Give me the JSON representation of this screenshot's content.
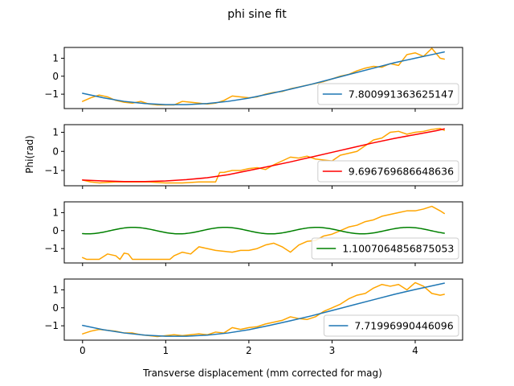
{
  "figure": {
    "suptitle": "phi sine fit",
    "xlabel": "Transverse displacement (mm corrected for mag)",
    "ylabel": "Phi(rad)"
  },
  "colors": {
    "data": "#ffa500",
    "fit_blue": "#1f77b4",
    "fit_red": "#ff0000",
    "fit_green": "#008000"
  },
  "chart_data": [
    {
      "type": "line",
      "panel": 1,
      "xlim": [
        -0.22,
        4.57
      ],
      "ylim": [
        -1.8,
        1.6
      ],
      "xticks": [
        0,
        1,
        2,
        3,
        4
      ],
      "yticks": [
        -1,
        0,
        1
      ],
      "legend": "lower-right",
      "fit_model": "sine",
      "series": [
        {
          "name": "",
          "role": "data",
          "color": "#ffa500",
          "x": [
            0.0,
            0.1,
            0.2,
            0.3,
            0.4,
            0.5,
            0.6,
            0.7,
            0.8,
            0.9,
            1.0,
            1.1,
            1.2,
            1.3,
            1.4,
            1.5,
            1.6,
            1.7,
            1.8,
            1.9,
            2.0,
            2.1,
            2.2,
            2.3,
            2.4,
            2.5,
            2.6,
            2.7,
            2.8,
            2.9,
            3.0,
            3.1,
            3.2,
            3.3,
            3.4,
            3.5,
            3.6,
            3.7,
            3.8,
            3.9,
            4.0,
            4.1,
            4.2,
            4.3,
            4.35
          ],
          "y": [
            -1.4,
            -1.2,
            -1.05,
            -1.15,
            -1.35,
            -1.45,
            -1.5,
            -1.4,
            -1.55,
            -1.6,
            -1.6,
            -1.6,
            -1.4,
            -1.45,
            -1.5,
            -1.55,
            -1.5,
            -1.35,
            -1.1,
            -1.15,
            -1.2,
            -1.15,
            -1.0,
            -0.9,
            -0.85,
            -0.7,
            -0.6,
            -0.5,
            -0.4,
            -0.3,
            -0.15,
            0.0,
            0.1,
            0.3,
            0.45,
            0.55,
            0.5,
            0.7,
            0.6,
            1.2,
            1.3,
            1.1,
            1.55,
            1.0,
            0.95
          ]
        },
        {
          "name": "7.800991363625147",
          "role": "fit",
          "color": "#1f77b4",
          "x": [
            0.0,
            0.25,
            0.5,
            0.75,
            1.0,
            1.25,
            1.5,
            1.75,
            2.0,
            2.25,
            2.5,
            2.75,
            3.0,
            3.25,
            3.5,
            3.75,
            4.0,
            4.25,
            4.35
          ],
          "y": [
            -0.95,
            -1.2,
            -1.4,
            -1.52,
            -1.58,
            -1.58,
            -1.52,
            -1.4,
            -1.22,
            -0.98,
            -0.72,
            -0.45,
            -0.15,
            0.15,
            0.45,
            0.75,
            1.0,
            1.25,
            1.35
          ]
        }
      ]
    },
    {
      "type": "line",
      "panel": 2,
      "xlim": [
        -0.22,
        4.57
      ],
      "ylim": [
        -1.8,
        1.4
      ],
      "xticks": [
        0,
        1,
        2,
        3,
        4
      ],
      "yticks": [
        -1,
        0,
        1
      ],
      "legend": "lower-right",
      "fit_model": "sine",
      "series": [
        {
          "name": "",
          "role": "data",
          "color": "#ffa500",
          "x": [
            0.0,
            0.1,
            0.2,
            0.4,
            0.6,
            0.8,
            1.0,
            1.2,
            1.4,
            1.6,
            1.65,
            1.7,
            1.8,
            1.9,
            2.0,
            2.1,
            2.2,
            2.3,
            2.4,
            2.5,
            2.6,
            2.7,
            2.8,
            2.9,
            3.0,
            3.1,
            3.2,
            3.3,
            3.4,
            3.5,
            3.6,
            3.7,
            3.8,
            3.9,
            4.0,
            4.1,
            4.2,
            4.3,
            4.35
          ],
          "y": [
            -1.5,
            -1.6,
            -1.65,
            -1.6,
            -1.6,
            -1.6,
            -1.65,
            -1.65,
            -1.6,
            -1.6,
            -1.1,
            -1.1,
            -1.0,
            -1.0,
            -0.9,
            -0.85,
            -0.95,
            -0.7,
            -0.5,
            -0.3,
            -0.35,
            -0.25,
            -0.4,
            -0.45,
            -0.5,
            -0.2,
            -0.1,
            0.0,
            0.3,
            0.6,
            0.7,
            1.0,
            1.05,
            0.9,
            1.0,
            1.05,
            1.15,
            1.2,
            1.1
          ]
        },
        {
          "name": "9.696769686648636",
          "role": "fit",
          "color": "#ff0000",
          "x": [
            0.0,
            0.25,
            0.5,
            0.75,
            1.0,
            1.25,
            1.5,
            1.75,
            2.0,
            2.25,
            2.5,
            2.75,
            3.0,
            3.25,
            3.5,
            3.75,
            4.0,
            4.25,
            4.35
          ],
          "y": [
            -1.5,
            -1.55,
            -1.58,
            -1.58,
            -1.55,
            -1.48,
            -1.38,
            -1.22,
            -1.0,
            -0.78,
            -0.55,
            -0.3,
            -0.05,
            0.2,
            0.45,
            0.68,
            0.88,
            1.08,
            1.18
          ]
        }
      ]
    },
    {
      "type": "line",
      "panel": 3,
      "xlim": [
        -0.22,
        4.57
      ],
      "ylim": [
        -1.8,
        1.6
      ],
      "xticks": [
        0,
        1,
        2,
        3,
        4
      ],
      "yticks": [
        -1,
        0,
        1
      ],
      "legend": "lower-right",
      "fit_model": "sine",
      "series": [
        {
          "name": "",
          "role": "data",
          "color": "#ffa500",
          "x": [
            0.0,
            0.05,
            0.1,
            0.2,
            0.3,
            0.4,
            0.45,
            0.5,
            0.55,
            0.6,
            0.65,
            0.7,
            0.8,
            0.9,
            1.0,
            1.05,
            1.1,
            1.2,
            1.3,
            1.4,
            1.5,
            1.6,
            1.7,
            1.8,
            1.9,
            2.0,
            2.1,
            2.2,
            2.3,
            2.4,
            2.5,
            2.6,
            2.7,
            2.8,
            2.9,
            3.0,
            3.1,
            3.2,
            3.3,
            3.4,
            3.5,
            3.6,
            3.7,
            3.8,
            3.9,
            4.0,
            4.1,
            4.2,
            4.3,
            4.35
          ],
          "y": [
            -1.5,
            -1.6,
            -1.6,
            -1.6,
            -1.3,
            -1.4,
            -1.6,
            -1.25,
            -1.3,
            -1.6,
            -1.6,
            -1.6,
            -1.6,
            -1.6,
            -1.6,
            -1.6,
            -1.4,
            -1.2,
            -1.3,
            -0.9,
            -1.0,
            -1.1,
            -1.15,
            -1.2,
            -1.1,
            -1.1,
            -1.0,
            -0.8,
            -0.7,
            -0.9,
            -1.2,
            -0.8,
            -0.6,
            -0.55,
            -0.3,
            -0.2,
            0.0,
            0.2,
            0.3,
            0.5,
            0.6,
            0.8,
            0.9,
            1.0,
            1.1,
            1.1,
            1.2,
            1.35,
            1.1,
            0.95
          ]
        },
        {
          "name": "1.1007064856875053",
          "role": "fit",
          "color": "#008000",
          "amplitude": 0.18,
          "offset": 0.0,
          "period": 1.1007064856875053,
          "phase_deg": 250,
          "x_range": [
            0.0,
            4.35
          ]
        }
      ]
    },
    {
      "type": "line",
      "panel": 4,
      "xlim": [
        -0.22,
        4.57
      ],
      "ylim": [
        -1.8,
        1.6
      ],
      "xticks": [
        0,
        1,
        2,
        3,
        4
      ],
      "yticks": [
        -1,
        0,
        1
      ],
      "legend": "lower-right",
      "fit_model": "sine",
      "series": [
        {
          "name": "",
          "role": "data",
          "color": "#ffa500",
          "x": [
            0.0,
            0.1,
            0.2,
            0.3,
            0.4,
            0.5,
            0.6,
            0.7,
            0.8,
            0.9,
            1.0,
            1.1,
            1.2,
            1.3,
            1.4,
            1.5,
            1.6,
            1.7,
            1.8,
            1.9,
            2.0,
            2.1,
            2.2,
            2.3,
            2.4,
            2.5,
            2.6,
            2.7,
            2.8,
            2.9,
            3.0,
            3.1,
            3.2,
            3.3,
            3.4,
            3.5,
            3.6,
            3.7,
            3.8,
            3.9,
            4.0,
            4.1,
            4.2,
            4.3,
            4.35
          ],
          "y": [
            -1.45,
            -1.3,
            -1.2,
            -1.25,
            -1.3,
            -1.4,
            -1.4,
            -1.5,
            -1.55,
            -1.6,
            -1.55,
            -1.5,
            -1.55,
            -1.5,
            -1.45,
            -1.5,
            -1.35,
            -1.4,
            -1.1,
            -1.2,
            -1.1,
            -1.05,
            -0.9,
            -0.8,
            -0.7,
            -0.5,
            -0.6,
            -0.65,
            -0.5,
            -0.2,
            0.0,
            0.2,
            0.5,
            0.7,
            0.8,
            1.1,
            1.3,
            1.2,
            1.3,
            1.0,
            1.4,
            1.2,
            0.8,
            0.7,
            0.75
          ]
        },
        {
          "name": "7.71996990446096",
          "role": "fit",
          "color": "#1f77b4",
          "x": [
            0.0,
            0.25,
            0.5,
            0.75,
            1.0,
            1.25,
            1.5,
            1.75,
            2.0,
            2.25,
            2.5,
            2.75,
            3.0,
            3.25,
            3.5,
            3.75,
            4.0,
            4.25,
            4.35
          ],
          "y": [
            -0.98,
            -1.22,
            -1.4,
            -1.52,
            -1.58,
            -1.58,
            -1.52,
            -1.4,
            -1.22,
            -0.98,
            -0.72,
            -0.45,
            -0.15,
            0.15,
            0.45,
            0.75,
            1.02,
            1.27,
            1.37
          ]
        }
      ]
    }
  ]
}
